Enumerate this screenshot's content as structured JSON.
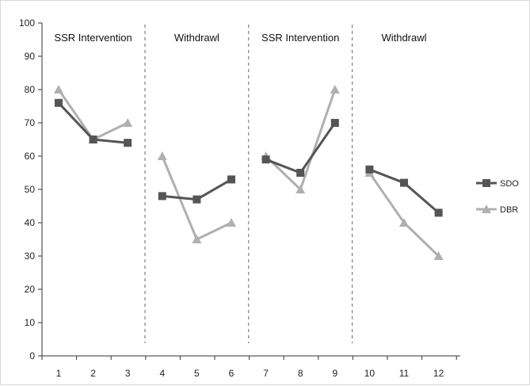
{
  "chart_data": {
    "type": "line",
    "title": "",
    "xlabel": "",
    "ylabel": "",
    "categories": [
      "1",
      "2",
      "3",
      "4",
      "5",
      "6",
      "7",
      "8",
      "9",
      "10",
      "11",
      "12"
    ],
    "ylim": [
      0,
      100
    ],
    "yticks": [
      0,
      10,
      20,
      30,
      40,
      50,
      60,
      70,
      80,
      90,
      100
    ],
    "grid": false,
    "legend_position": "right",
    "phases": [
      {
        "label": "SSR Intervention",
        "x_start": 1,
        "x_end": 3
      },
      {
        "label": "Withdrawl",
        "x_start": 4,
        "x_end": 6
      },
      {
        "label": "SSR Intervention",
        "x_start": 7,
        "x_end": 9
      },
      {
        "label": "Withdrawl",
        "x_start": 10,
        "x_end": 12
      }
    ],
    "series": [
      {
        "name": "SDO",
        "marker": "square",
        "color": "#555555",
        "segments": [
          [
            {
              "x": 1,
              "y": 76
            },
            {
              "x": 2,
              "y": 65
            },
            {
              "x": 3,
              "y": 64
            }
          ],
          [
            {
              "x": 4,
              "y": 48
            },
            {
              "x": 5,
              "y": 47
            },
            {
              "x": 6,
              "y": 53
            }
          ],
          [
            {
              "x": 7,
              "y": 59
            },
            {
              "x": 8,
              "y": 55
            },
            {
              "x": 9,
              "y": 70
            }
          ],
          [
            {
              "x": 10,
              "y": 56
            },
            {
              "x": 11,
              "y": 52
            },
            {
              "x": 12,
              "y": 43
            }
          ]
        ]
      },
      {
        "name": "DBR",
        "marker": "triangle",
        "color": "#b0b0b0",
        "segments": [
          [
            {
              "x": 1,
              "y": 80
            },
            {
              "x": 2,
              "y": 65
            },
            {
              "x": 3,
              "y": 70
            }
          ],
          [
            {
              "x": 4,
              "y": 60
            },
            {
              "x": 5,
              "y": 35
            },
            {
              "x": 6,
              "y": 40
            }
          ],
          [
            {
              "x": 7,
              "y": 60
            },
            {
              "x": 8,
              "y": 50
            },
            {
              "x": 9,
              "y": 80
            }
          ],
          [
            {
              "x": 10,
              "y": 55
            },
            {
              "x": 11,
              "y": 40
            },
            {
              "x": 12,
              "y": 30
            }
          ]
        ]
      }
    ]
  }
}
